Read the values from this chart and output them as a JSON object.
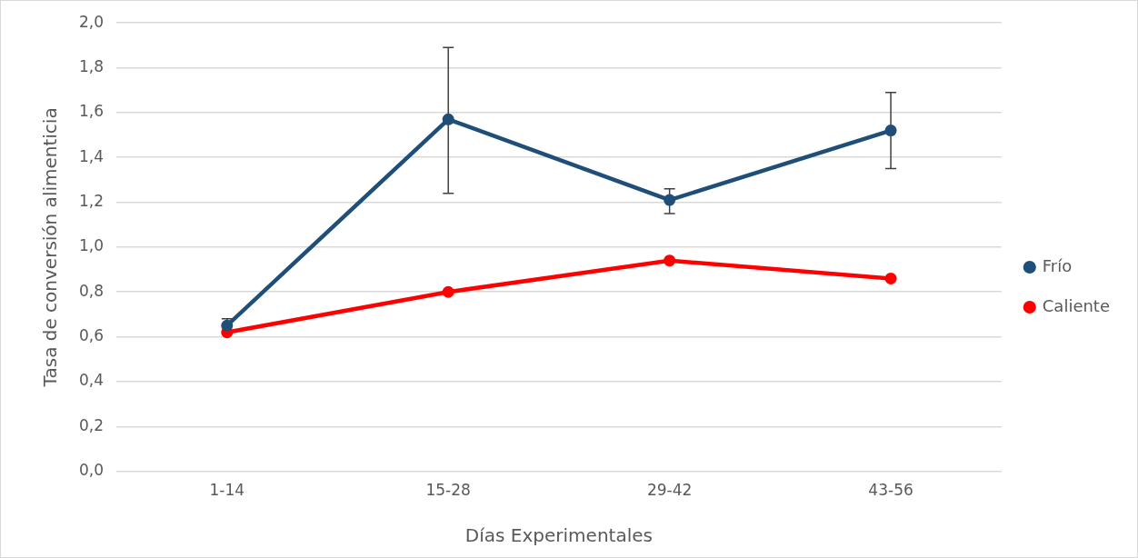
{
  "chart_data": {
    "type": "line",
    "xlabel": "Días Experimentales",
    "ylabel": "Tasa de conversión alimenticia",
    "categories": [
      "1-14",
      "15-28",
      "29-42",
      "43-56"
    ],
    "series": [
      {
        "name": "Frío",
        "color": "#1f4e79",
        "values": [
          0.65,
          1.57,
          1.21,
          1.52
        ],
        "errors": [
          0.03,
          [
            1.24,
            1.89
          ],
          [
            1.15,
            1.26
          ],
          [
            1.35,
            1.69
          ]
        ]
      },
      {
        "name": "Caliente",
        "color": "#ff0000",
        "values": [
          0.62,
          0.8,
          0.94,
          0.86
        ]
      }
    ],
    "ylim": [
      0,
      2
    ],
    "yticks": [
      {
        "value": 0,
        "label": "0,0"
      },
      {
        "value": 0.2,
        "label": "0,2"
      },
      {
        "value": 0.4,
        "label": "0,4"
      },
      {
        "value": 0.6,
        "label": "0,6"
      },
      {
        "value": 0.8,
        "label": "0,8"
      },
      {
        "value": 1,
        "label": "1,0"
      },
      {
        "value": 1.2,
        "label": "1,2"
      },
      {
        "value": 1.4,
        "label": "1,4"
      },
      {
        "value": 1.6,
        "label": "1,6"
      },
      {
        "value": 1.8,
        "label": "1,8"
      },
      {
        "value": 2,
        "label": "2,0"
      }
    ],
    "grid": "y",
    "legend": "right",
    "marker": "circle",
    "line_style": "solid"
  }
}
